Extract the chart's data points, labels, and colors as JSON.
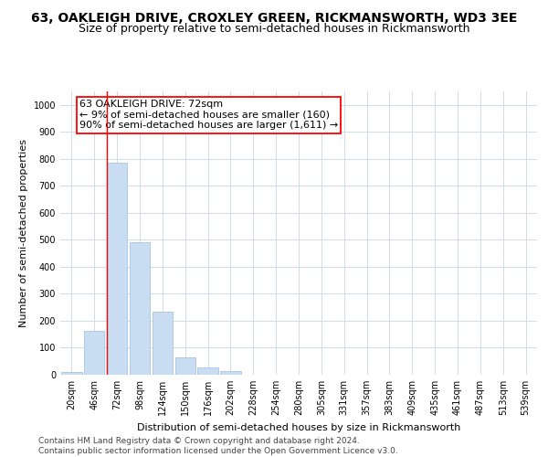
{
  "title": "63, OAKLEIGH DRIVE, CROXLEY GREEN, RICKMANSWORTH, WD3 3EE",
  "subtitle": "Size of property relative to semi-detached houses in Rickmansworth",
  "xlabel": "Distribution of semi-detached houses by size in Rickmansworth",
  "ylabel": "Number of semi-detached properties",
  "categories": [
    "20sqm",
    "46sqm",
    "72sqm",
    "98sqm",
    "124sqm",
    "150sqm",
    "176sqm",
    "202sqm",
    "228sqm",
    "254sqm",
    "280sqm",
    "305sqm",
    "331sqm",
    "357sqm",
    "383sqm",
    "409sqm",
    "435sqm",
    "461sqm",
    "487sqm",
    "513sqm",
    "539sqm"
  ],
  "values": [
    10,
    163,
    785,
    490,
    235,
    63,
    28,
    13,
    0,
    0,
    0,
    0,
    0,
    0,
    0,
    0,
    0,
    0,
    0,
    0,
    0
  ],
  "bar_color": "#c9ddf2",
  "bar_edge_color": "#a8c4e0",
  "annotation_line_bin_index": 2,
  "annotation_box_text": "63 OAKLEIGH DRIVE: 72sqm\n← 9% of semi-detached houses are smaller (160)\n90% of semi-detached houses are larger (1,611) →",
  "annotation_box_color": "white",
  "annotation_box_edge_color": "red",
  "footer_text": "Contains HM Land Registry data © Crown copyright and database right 2024.\nContains public sector information licensed under the Open Government Licence v3.0.",
  "ylim": [
    0,
    1050
  ],
  "yticks": [
    0,
    100,
    200,
    300,
    400,
    500,
    600,
    700,
    800,
    900,
    1000
  ],
  "grid_color": "#d0daea",
  "title_fontsize": 10,
  "subtitle_fontsize": 9,
  "axis_label_fontsize": 8,
  "tick_fontsize": 7,
  "footer_fontsize": 6.5,
  "annotation_fontsize": 8
}
